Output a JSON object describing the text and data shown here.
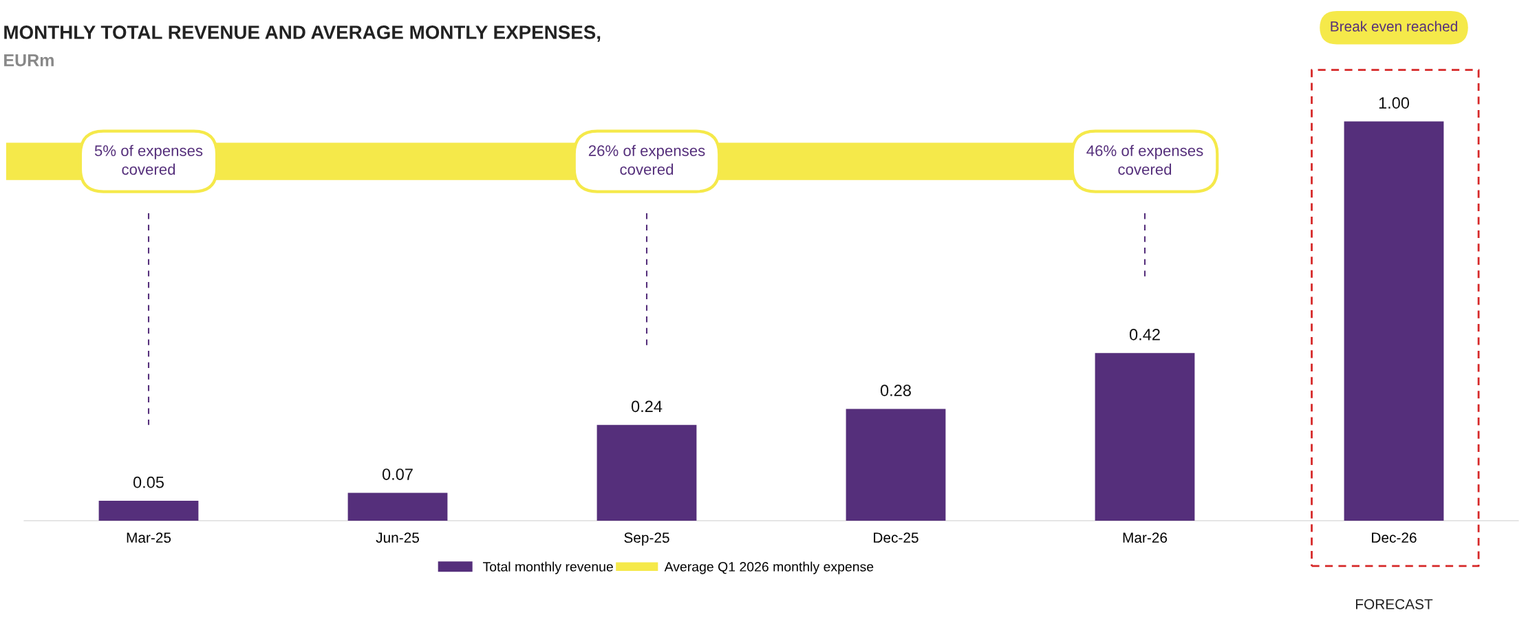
{
  "chart_data": {
    "type": "bar",
    "title": "MONTHLY TOTAL REVENUE AND AVERAGE MONTLY EXPENSES,",
    "subtitle": "EURm",
    "categories": [
      "Mar-25",
      "Jun-25",
      "Sep-25",
      "Dec-25",
      "Mar-26",
      "Dec-26"
    ],
    "series": [
      {
        "name": "Total monthly revenue",
        "color": "#552f7b",
        "values": [
          0.05,
          0.07,
          0.24,
          0.28,
          0.42,
          1.0
        ],
        "value_labels": [
          "0.05",
          "0.07",
          "0.24",
          "0.28",
          "0.42",
          "1.00"
        ]
      }
    ],
    "ref_lines": [
      {
        "axis": "y",
        "value": 0.9,
        "label": "Average Q1 2026 monthly expense",
        "color": "#f5e94a"
      }
    ],
    "annotations": [
      "5% of expenses\ncovered",
      "26% of expenses\ncovered",
      "46% of expenses\ncovered",
      "Break even reached",
      "FORECAST"
    ],
    "tick_labels": "x",
    "grid": false,
    "legend": "bottom"
  }
}
